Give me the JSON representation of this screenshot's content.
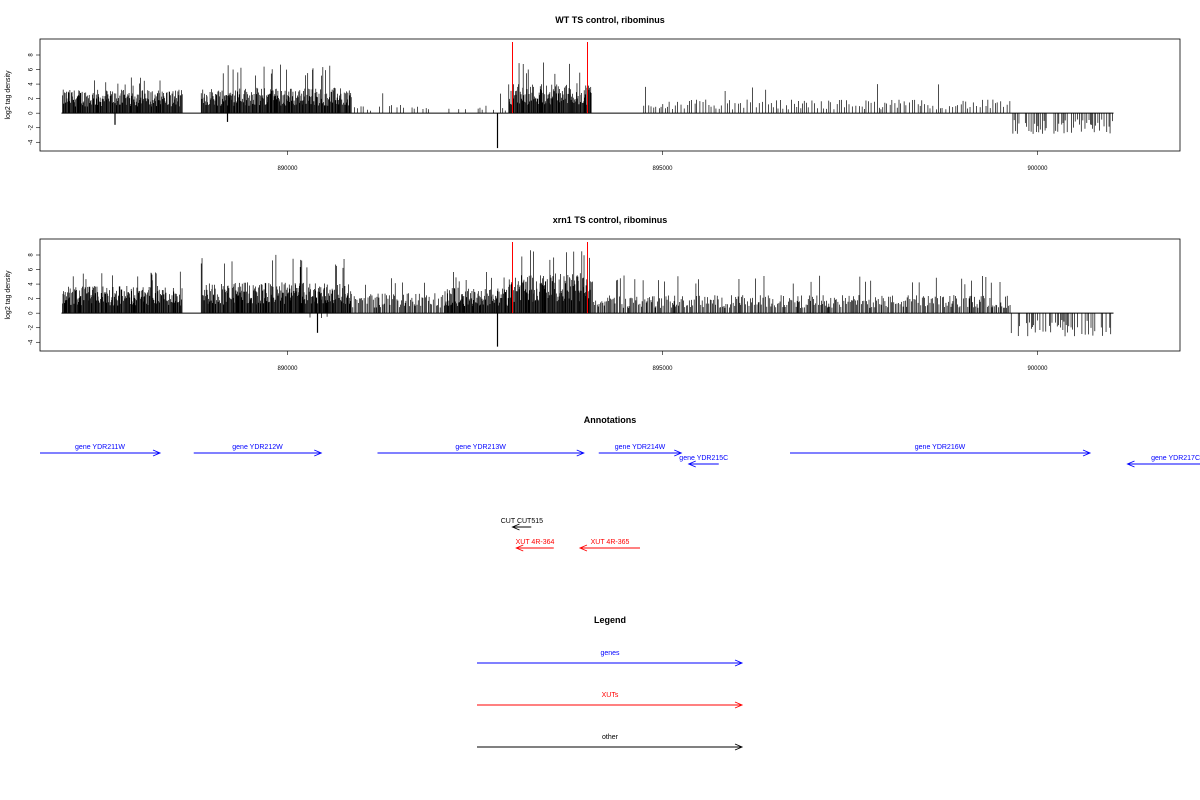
{
  "chart_data": [
    {
      "type": "bar",
      "title": "WT TS control, ribominus",
      "ylabel": "log2 tag density",
      "xlim": [
        886700,
        901900
      ],
      "ylim": [
        -5.2,
        10.2
      ],
      "yticks": [
        -4,
        -2,
        0,
        2,
        4,
        6,
        8
      ],
      "xticks": [
        890000,
        895000,
        900000
      ],
      "marker_positions": [
        893000,
        894000
      ],
      "marker_color": "#ff0000",
      "positive_segments": [
        {
          "from": 887000,
          "to": 888600,
          "mean": 2.6,
          "max": 5.0
        },
        {
          "from": 888850,
          "to": 890850,
          "mean": 2.8,
          "max": 6.8
        },
        {
          "from": 890850,
          "to": 892100,
          "mean": 0.9,
          "max": 3.3
        },
        {
          "from": 892100,
          "to": 892950,
          "mean": 1.0,
          "max": 3.0
        },
        {
          "from": 892950,
          "to": 894050,
          "mean": 3.3,
          "max": 7.0
        },
        {
          "from": 894750,
          "to": 899650,
          "mean": 1.5,
          "max": 4.0
        }
      ],
      "negative_segments": [
        {
          "from": 899650,
          "to": 901000,
          "mean": -2.3,
          "min": -3.6
        }
      ],
      "spikes": [
        {
          "x": 887700,
          "y": -1.6
        },
        {
          "x": 892800,
          "y": -4.8
        },
        {
          "x": 889200,
          "y": -1.2
        }
      ]
    },
    {
      "type": "bar",
      "title": "xrn1 TS control, ribominus",
      "ylabel": "log2 tag density",
      "xlim": [
        886700,
        901900
      ],
      "ylim": [
        -5.2,
        10.2
      ],
      "yticks": [
        -4,
        -2,
        0,
        2,
        4,
        6,
        8
      ],
      "xticks": [
        890000,
        895000,
        900000
      ],
      "marker_positions": [
        893000,
        894000
      ],
      "marker_color": "#ff0000",
      "positive_segments": [
        {
          "from": 887000,
          "to": 888600,
          "mean": 3.0,
          "max": 5.8
        },
        {
          "from": 888850,
          "to": 890850,
          "mean": 3.4,
          "max": 8.2
        },
        {
          "from": 890850,
          "to": 892100,
          "mean": 2.2,
          "max": 5.2
        },
        {
          "from": 892100,
          "to": 892950,
          "mean": 2.8,
          "max": 5.8
        },
        {
          "from": 892950,
          "to": 894050,
          "mean": 4.4,
          "max": 9.0
        },
        {
          "from": 894050,
          "to": 899650,
          "mean": 2.0,
          "max": 5.2
        }
      ],
      "negative_segments": [
        {
          "from": 899650,
          "to": 901000,
          "mean": -2.6,
          "min": -4.0
        },
        {
          "from": 890300,
          "to": 890550,
          "mean": -1.0,
          "min": -2.6
        }
      ],
      "spikes": [
        {
          "x": 892800,
          "y": -4.6
        },
        {
          "x": 890400,
          "y": -2.7
        }
      ]
    }
  ],
  "annotations": {
    "title": "Annotations",
    "xlim": [
      886700,
      901900
    ],
    "features": [
      {
        "label": "gene YDR211W",
        "start": 886700,
        "end": 888300,
        "strand": "+",
        "row": 0,
        "color": "#0000ff"
      },
      {
        "label": "gene YDR212W",
        "start": 888750,
        "end": 890450,
        "strand": "+",
        "row": 0,
        "color": "#0000ff"
      },
      {
        "label": "gene YDR213W",
        "start": 891200,
        "end": 893950,
        "strand": "+",
        "row": 0,
        "color": "#0000ff"
      },
      {
        "label": "gene YDR214W",
        "start": 894150,
        "end": 895250,
        "strand": "+",
        "row": 0,
        "color": "#0000ff"
      },
      {
        "label": "gene YDR215C",
        "start": 895350,
        "end": 895750,
        "strand": "-",
        "row": 1,
        "color": "#0000ff"
      },
      {
        "label": "gene YDR216W",
        "start": 896700,
        "end": 900700,
        "strand": "+",
        "row": 0,
        "color": "#0000ff"
      },
      {
        "label": "gene YDR217C",
        "start": 901200,
        "end": 903500,
        "strand": "-",
        "row": 1,
        "color": "#0000ff"
      },
      {
        "label": "CUT CUT515",
        "start": 893000,
        "end": 893250,
        "strand": "-",
        "row": 2,
        "color": "#000000"
      },
      {
        "label": "XUT 4R-364",
        "start": 893050,
        "end": 893550,
        "strand": "-",
        "row": 3,
        "color": "#ff0000"
      },
      {
        "label": "XUT 4R-365",
        "start": 893900,
        "end": 894700,
        "strand": "-",
        "row": 3,
        "color": "#ff0000"
      }
    ]
  },
  "legend": {
    "title": "Legend",
    "items": [
      {
        "label": "genes",
        "color": "#0000ff"
      },
      {
        "label": "XUTs",
        "color": "#ff0000"
      },
      {
        "label": "other",
        "color": "#000000"
      }
    ]
  }
}
